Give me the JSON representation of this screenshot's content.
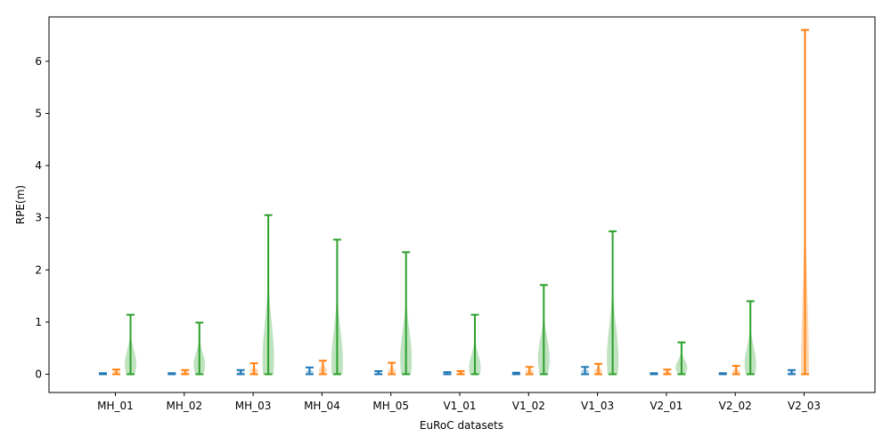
{
  "chart_data": {
    "type": "violin",
    "xlabel": "EuRoC datasets",
    "ylabel": "RPE(m)",
    "ylim": [
      -0.35,
      6.85
    ],
    "yticks": [
      0,
      1,
      2,
      3,
      4,
      5,
      6
    ],
    "categories": [
      "MH_01",
      "MH_02",
      "MH_03",
      "MH_04",
      "MH_05",
      "V1_01",
      "V1_02",
      "V1_03",
      "V2_01",
      "V2_02",
      "V2_03"
    ],
    "grid": false,
    "legend": "none",
    "series": [
      {
        "color": "#1f77b4",
        "min": [
          0.0,
          0.0,
          0.0,
          0.0,
          0.0,
          0.0,
          0.0,
          0.0,
          0.0,
          0.0,
          0.0
        ],
        "max": [
          0.02,
          0.02,
          0.08,
          0.13,
          0.06,
          0.04,
          0.03,
          0.14,
          0.02,
          0.02,
          0.08
        ],
        "peak": [
          0.01,
          0.01,
          0.03,
          0.04,
          0.02,
          0.02,
          0.01,
          0.05,
          0.01,
          0.01,
          0.03
        ]
      },
      {
        "color": "#ff7f0e",
        "min": [
          0.0,
          0.0,
          0.0,
          0.0,
          0.0,
          0.0,
          0.0,
          0.0,
          0.0,
          0.0,
          0.0
        ],
        "max": [
          0.09,
          0.08,
          0.21,
          0.26,
          0.22,
          0.06,
          0.14,
          0.2,
          0.09,
          0.16,
          6.6
        ],
        "peak": [
          0.04,
          0.03,
          0.06,
          0.08,
          0.06,
          0.02,
          0.05,
          0.06,
          0.03,
          0.05,
          0.05
        ]
      },
      {
        "color": "#2ca02c",
        "min": [
          0.0,
          0.0,
          0.0,
          0.0,
          0.0,
          0.0,
          0.0,
          0.0,
          0.0,
          0.0,
          0.0
        ],
        "max": [
          1.14,
          0.99,
          3.05,
          2.58,
          2.34,
          1.14,
          1.71,
          2.74,
          0.61,
          1.4,
          null
        ],
        "peak": [
          0.2,
          0.18,
          0.3,
          0.25,
          0.3,
          0.12,
          0.3,
          0.3,
          0.13,
          0.2,
          null
        ]
      }
    ]
  }
}
